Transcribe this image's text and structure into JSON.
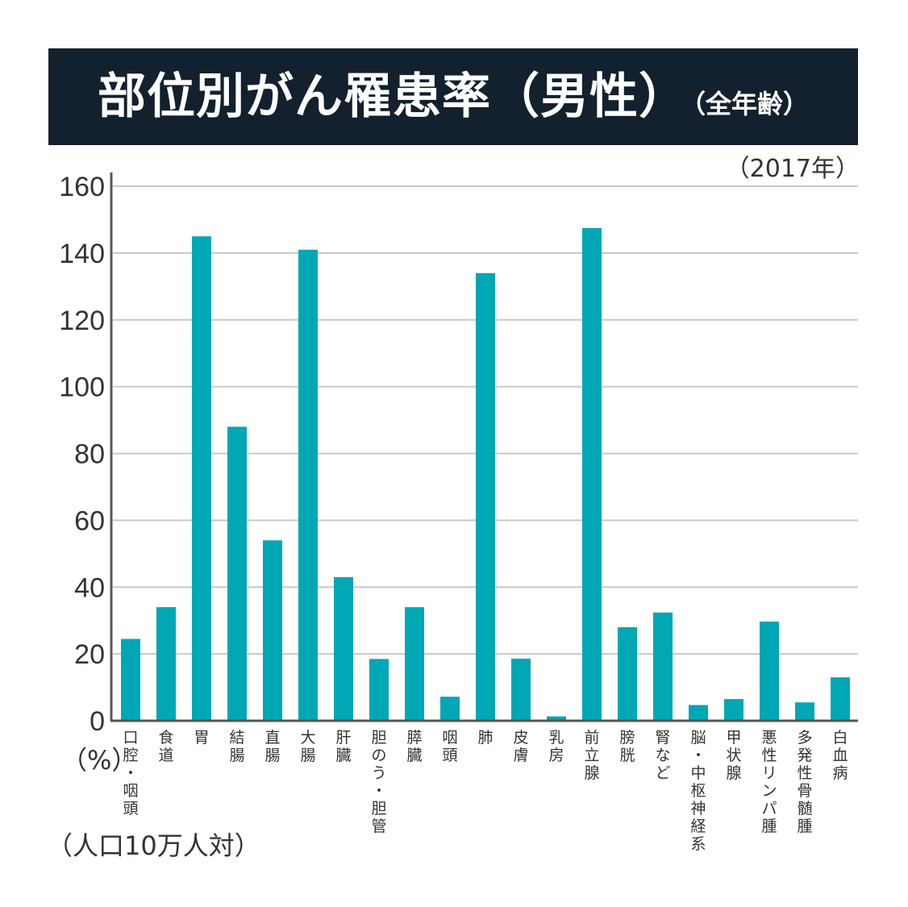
{
  "header": {
    "title": "部位別がん罹患率（男性）",
    "subtitle": "（全年齢）",
    "year_note": "（2017年）",
    "unit": "（%）",
    "per_label": "（人口10万人対）"
  },
  "colors": {
    "bar": "#00a7b5",
    "banner": "#13202e",
    "grid": "#c8c8c8",
    "axis": "#555555"
  },
  "chart_data": {
    "type": "bar",
    "title": "部位別がん罹患率（男性）（全年齢）",
    "xlabel": "",
    "ylabel": "（%）",
    "ylim": [
      0,
      160
    ],
    "yticks": [
      0,
      20,
      40,
      60,
      80,
      100,
      120,
      140,
      160
    ],
    "grid": true,
    "categories": [
      "口腔・咽頭",
      "食道",
      "胃",
      "結腸",
      "直腸",
      "大腸",
      "肝臓",
      "胆のう・胆管",
      "膵臓",
      "咽頭",
      "肺",
      "皮膚",
      "乳房",
      "前立腺",
      "膀胱",
      "腎など",
      "脳・中枢神経系",
      "甲状腺",
      "悪性リンパ腫",
      "多発性骨髄腫",
      "白血病"
    ],
    "values": [
      24.5,
      34,
      145,
      88,
      54,
      141,
      43,
      18.5,
      34,
      7.2,
      134,
      18.6,
      1.3,
      147.5,
      28,
      32.4,
      4.7,
      6.5,
      29.7,
      5.5,
      13
    ]
  }
}
